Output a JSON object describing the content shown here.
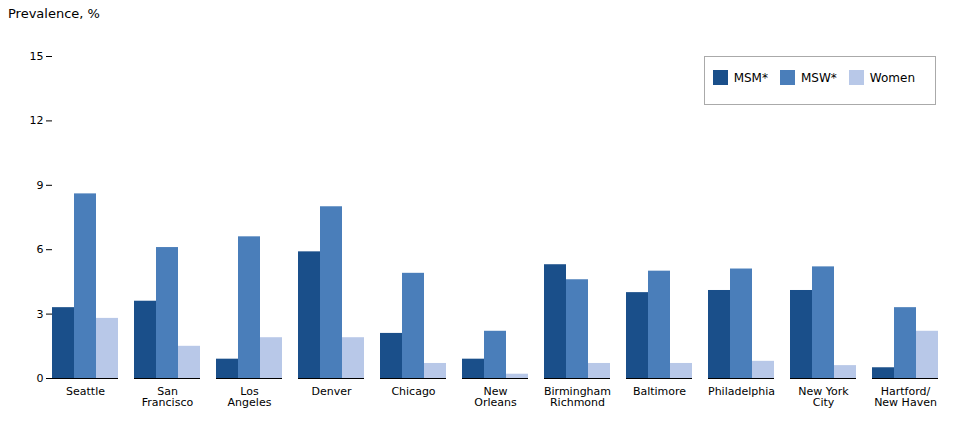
{
  "chart_data": {
    "type": "bar",
    "categories": [
      "Seattle",
      "San\nFrancisco",
      "Los\nAngeles",
      "Denver",
      "Chicago",
      "New\nOrleans",
      "Birmingham\nRichmond",
      "Baltimore",
      "Philadelphia",
      "New York\nCity",
      "Hartford/\nNew Haven"
    ],
    "series": [
      {
        "name": "MSM*",
        "color": "#1a4f8a",
        "values": [
          3.3,
          3.6,
          0.9,
          5.9,
          2.1,
          0.9,
          5.3,
          4.0,
          4.1,
          4.1,
          0.5
        ]
      },
      {
        "name": "MSW*",
        "color": "#4a7eba",
        "values": [
          8.6,
          6.1,
          6.6,
          8.0,
          4.9,
          2.2,
          4.6,
          5.0,
          5.1,
          5.2,
          3.3
        ]
      },
      {
        "name": "Women",
        "color": "#b8c8e8",
        "values": [
          2.8,
          1.5,
          1.9,
          1.9,
          0.7,
          0.2,
          0.7,
          0.7,
          0.8,
          0.6,
          2.2
        ]
      }
    ],
    "ylabel": "Prevalence, %",
    "ylim": [
      0,
      15
    ],
    "yticks": [
      0,
      3,
      6,
      9,
      12,
      15
    ],
    "grid": false,
    "legend": "upper right"
  }
}
